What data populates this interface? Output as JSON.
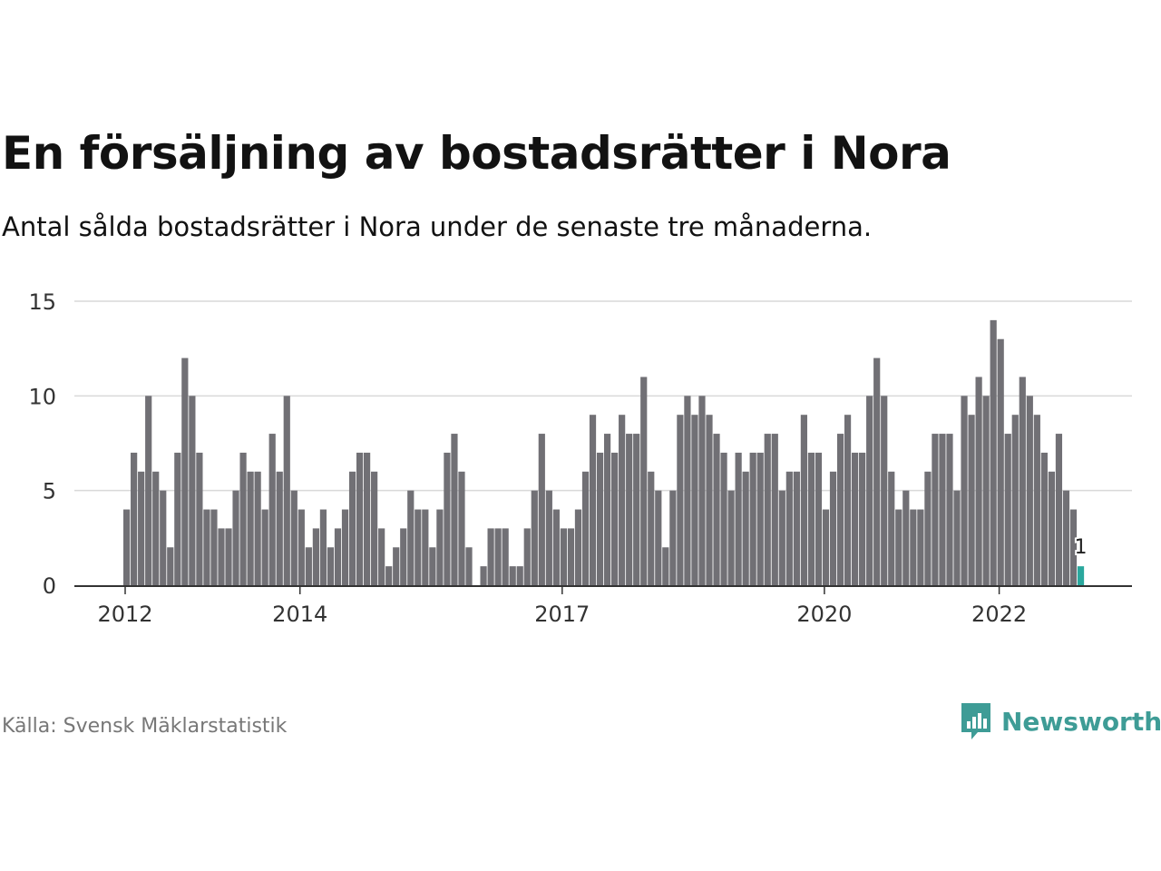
{
  "title": "En försäljning av bostadsrätter i Nora",
  "subtitle": "Antal sålda bostadsrätter i Nora under de senaste tre månaderna.",
  "source": "Källa: Svensk Mäklarstatistik",
  "brand": "Newsworthy",
  "colors": {
    "bar": "#717075",
    "highlight": "#2aa89e",
    "brand": "#3e9c96",
    "grid": "#d9d9d9"
  },
  "chart_data": {
    "type": "bar",
    "ylim": [
      0,
      15
    ],
    "yticks": [
      0,
      5,
      10,
      15
    ],
    "xticks": [
      {
        "label": "2012",
        "index": 0
      },
      {
        "label": "2014",
        "index": 24
      },
      {
        "label": "2017",
        "index": 60
      },
      {
        "label": "2020",
        "index": 96
      },
      {
        "label": "2022",
        "index": 120
      }
    ],
    "start": "2012-01",
    "values": [
      4,
      7,
      6,
      10,
      6,
      5,
      2,
      7,
      12,
      10,
      7,
      4,
      4,
      3,
      3,
      5,
      7,
      6,
      6,
      4,
      8,
      6,
      10,
      5,
      4,
      2,
      3,
      4,
      2,
      3,
      4,
      6,
      7,
      7,
      6,
      3,
      1,
      2,
      3,
      5,
      4,
      4,
      2,
      4,
      7,
      8,
      6,
      2,
      0,
      1,
      3,
      3,
      3,
      1,
      1,
      3,
      5,
      8,
      5,
      4,
      3,
      3,
      4,
      6,
      9,
      7,
      8,
      7,
      9,
      8,
      8,
      11,
      6,
      5,
      2,
      5,
      9,
      10,
      9,
      10,
      9,
      8,
      7,
      5,
      7,
      6,
      7,
      7,
      8,
      8,
      5,
      6,
      6,
      9,
      7,
      7,
      4,
      6,
      8,
      9,
      7,
      7,
      10,
      12,
      10,
      6,
      4,
      5,
      4,
      4,
      6,
      8,
      8,
      8,
      5,
      10,
      9,
      11,
      10,
      14,
      13,
      8,
      9,
      11,
      10,
      9,
      7,
      6,
      8,
      5,
      4,
      1
    ],
    "highlight_last": true,
    "data_labels": [
      {
        "text": "1"
      }
    ]
  }
}
